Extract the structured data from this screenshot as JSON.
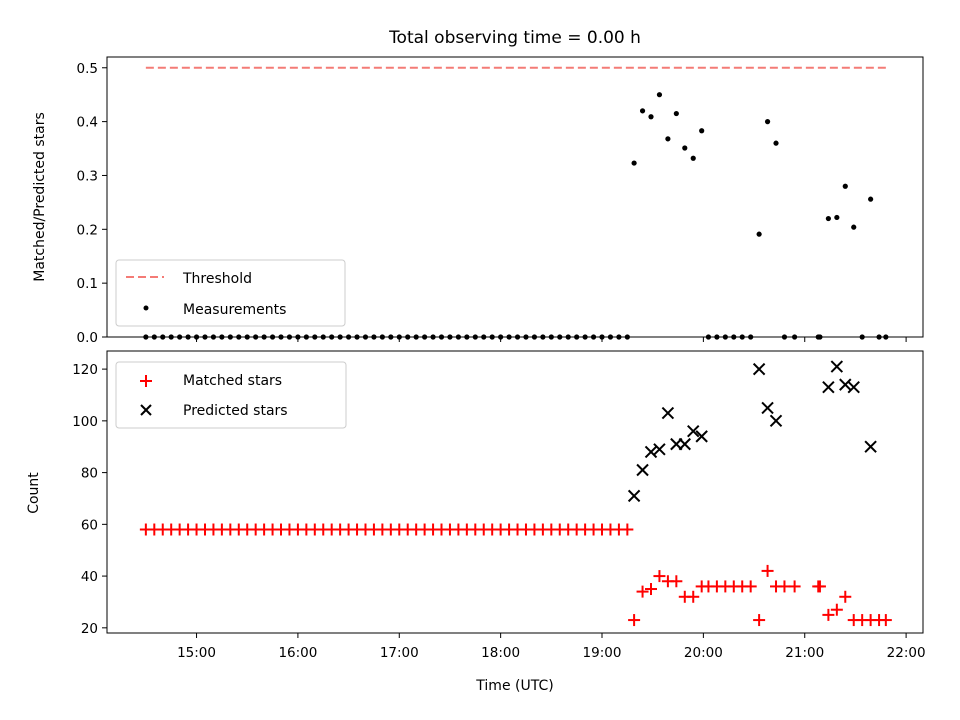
{
  "title": "Total observing time = 0.00 h",
  "chart_data": [
    {
      "type": "scatter",
      "panel": "top",
      "ylabel": "Matched/Predicted stars",
      "ylim": [
        0,
        0.52
      ],
      "yticks": [
        "0.0",
        "0.1",
        "0.2",
        "0.3",
        "0.4",
        "0.5"
      ],
      "threshold": {
        "name": "Threshold",
        "value": 0.5,
        "x_start": "14:30",
        "x_end": "21:48",
        "color": "#f47b76"
      },
      "series": [
        {
          "name": "Measurements",
          "color": "#000000",
          "points": [
            [
              "14:30",
              0
            ],
            [
              "14:35",
              0
            ],
            [
              "14:40",
              0
            ],
            [
              "14:45",
              0
            ],
            [
              "14:50",
              0
            ],
            [
              "14:55",
              0
            ],
            [
              "15:00",
              0
            ],
            [
              "15:05",
              0
            ],
            [
              "15:10",
              0
            ],
            [
              "15:15",
              0
            ],
            [
              "15:20",
              0
            ],
            [
              "15:25",
              0
            ],
            [
              "15:30",
              0
            ],
            [
              "15:35",
              0
            ],
            [
              "15:40",
              0
            ],
            [
              "15:45",
              0
            ],
            [
              "15:50",
              0
            ],
            [
              "15:55",
              0
            ],
            [
              "16:00",
              0
            ],
            [
              "16:05",
              0
            ],
            [
              "16:10",
              0
            ],
            [
              "16:15",
              0
            ],
            [
              "16:20",
              0
            ],
            [
              "16:25",
              0
            ],
            [
              "16:30",
              0
            ],
            [
              "16:35",
              0
            ],
            [
              "16:40",
              0
            ],
            [
              "16:45",
              0
            ],
            [
              "16:50",
              0
            ],
            [
              "16:55",
              0
            ],
            [
              "17:00",
              0
            ],
            [
              "17:05",
              0
            ],
            [
              "17:10",
              0
            ],
            [
              "17:15",
              0
            ],
            [
              "17:20",
              0
            ],
            [
              "17:25",
              0
            ],
            [
              "17:30",
              0
            ],
            [
              "17:35",
              0
            ],
            [
              "17:40",
              0
            ],
            [
              "17:45",
              0
            ],
            [
              "17:50",
              0
            ],
            [
              "17:55",
              0
            ],
            [
              "18:00",
              0
            ],
            [
              "18:05",
              0
            ],
            [
              "18:10",
              0
            ],
            [
              "18:15",
              0
            ],
            [
              "18:20",
              0
            ],
            [
              "18:25",
              0
            ],
            [
              "18:30",
              0
            ],
            [
              "18:35",
              0
            ],
            [
              "18:40",
              0
            ],
            [
              "18:45",
              0
            ],
            [
              "18:50",
              0
            ],
            [
              "18:55",
              0
            ],
            [
              "19:00",
              0
            ],
            [
              "19:05",
              0
            ],
            [
              "19:10",
              0
            ],
            [
              "19:15",
              0
            ],
            [
              "19:19",
              0.323
            ],
            [
              "19:24",
              0.42
            ],
            [
              "19:29",
              0.409
            ],
            [
              "19:34",
              0.45
            ],
            [
              "19:39",
              0.368
            ],
            [
              "19:44",
              0.415
            ],
            [
              "19:49",
              0.351
            ],
            [
              "19:54",
              0.332
            ],
            [
              "19:59",
              0.383
            ],
            [
              "20:03",
              0
            ],
            [
              "20:08",
              0
            ],
            [
              "20:13",
              0
            ],
            [
              "20:18",
              0
            ],
            [
              "20:23",
              0
            ],
            [
              "20:28",
              0
            ],
            [
              "20:33",
              0.191
            ],
            [
              "20:38",
              0.4
            ],
            [
              "20:43",
              0.36
            ],
            [
              "20:48",
              0
            ],
            [
              "20:54",
              0
            ],
            [
              "21:08",
              0
            ],
            [
              "21:09",
              0
            ],
            [
              "21:14",
              0.22
            ],
            [
              "21:19",
              0.222
            ],
            [
              "21:24",
              0.28
            ],
            [
              "21:29",
              0.204
            ],
            [
              "21:34",
              0
            ],
            [
              "21:39",
              0.256
            ],
            [
              "21:44",
              0
            ],
            [
              "21:48",
              0
            ]
          ]
        }
      ]
    },
    {
      "type": "scatter",
      "panel": "bottom",
      "xlabel": "Time (UTC)",
      "ylabel": "Count",
      "ylim": [
        18,
        127
      ],
      "yticks": [
        "20",
        "40",
        "60",
        "80",
        "100",
        "120"
      ],
      "xlim": [
        "14:07",
        "22:10"
      ],
      "xticks": [
        "15:00",
        "16:00",
        "17:00",
        "18:00",
        "19:00",
        "20:00",
        "21:00",
        "22:00"
      ],
      "series": [
        {
          "name": "Matched stars",
          "marker": "plus",
          "color": "#ff0000",
          "points": [
            [
              "14:30",
              58
            ],
            [
              "14:35",
              58
            ],
            [
              "14:40",
              58
            ],
            [
              "14:45",
              58
            ],
            [
              "14:50",
              58
            ],
            [
              "14:55",
              58
            ],
            [
              "15:00",
              58
            ],
            [
              "15:05",
              58
            ],
            [
              "15:10",
              58
            ],
            [
              "15:15",
              58
            ],
            [
              "15:20",
              58
            ],
            [
              "15:25",
              58
            ],
            [
              "15:30",
              58
            ],
            [
              "15:35",
              58
            ],
            [
              "15:40",
              58
            ],
            [
              "15:45",
              58
            ],
            [
              "15:50",
              58
            ],
            [
              "15:55",
              58
            ],
            [
              "16:00",
              58
            ],
            [
              "16:05",
              58
            ],
            [
              "16:10",
              58
            ],
            [
              "16:15",
              58
            ],
            [
              "16:20",
              58
            ],
            [
              "16:25",
              58
            ],
            [
              "16:30",
              58
            ],
            [
              "16:35",
              58
            ],
            [
              "16:40",
              58
            ],
            [
              "16:45",
              58
            ],
            [
              "16:50",
              58
            ],
            [
              "16:55",
              58
            ],
            [
              "17:00",
              58
            ],
            [
              "17:05",
              58
            ],
            [
              "17:10",
              58
            ],
            [
              "17:15",
              58
            ],
            [
              "17:20",
              58
            ],
            [
              "17:25",
              58
            ],
            [
              "17:30",
              58
            ],
            [
              "17:35",
              58
            ],
            [
              "17:40",
              58
            ],
            [
              "17:45",
              58
            ],
            [
              "17:50",
              58
            ],
            [
              "17:55",
              58
            ],
            [
              "18:00",
              58
            ],
            [
              "18:05",
              58
            ],
            [
              "18:10",
              58
            ],
            [
              "18:15",
              58
            ],
            [
              "18:20",
              58
            ],
            [
              "18:25",
              58
            ],
            [
              "18:30",
              58
            ],
            [
              "18:35",
              58
            ],
            [
              "18:40",
              58
            ],
            [
              "18:45",
              58
            ],
            [
              "18:50",
              58
            ],
            [
              "18:55",
              58
            ],
            [
              "19:00",
              58
            ],
            [
              "19:05",
              58
            ],
            [
              "19:10",
              58
            ],
            [
              "19:15",
              58
            ],
            [
              "19:19",
              23
            ],
            [
              "19:24",
              34
            ],
            [
              "19:29",
              35
            ],
            [
              "19:34",
              40
            ],
            [
              "19:39",
              38
            ],
            [
              "19:44",
              38
            ],
            [
              "19:49",
              32
            ],
            [
              "19:54",
              32
            ],
            [
              "19:59",
              36
            ],
            [
              "20:03",
              36
            ],
            [
              "20:08",
              36
            ],
            [
              "20:13",
              36
            ],
            [
              "20:18",
              36
            ],
            [
              "20:23",
              36
            ],
            [
              "20:28",
              36
            ],
            [
              "20:33",
              23
            ],
            [
              "20:38",
              42
            ],
            [
              "20:43",
              36
            ],
            [
              "20:48",
              36
            ],
            [
              "20:54",
              36
            ],
            [
              "21:08",
              36
            ],
            [
              "21:09",
              36
            ],
            [
              "21:14",
              25
            ],
            [
              "21:19",
              27
            ],
            [
              "21:24",
              32
            ],
            [
              "21:29",
              23
            ],
            [
              "21:34",
              23
            ],
            [
              "21:39",
              23
            ],
            [
              "21:44",
              23
            ],
            [
              "21:48",
              23
            ]
          ]
        },
        {
          "name": "Predicted stars",
          "marker": "x",
          "color": "#000000",
          "points": [
            [
              "19:19",
              71
            ],
            [
              "19:24",
              81
            ],
            [
              "19:29",
              88
            ],
            [
              "19:34",
              89
            ],
            [
              "19:39",
              103
            ],
            [
              "19:44",
              91
            ],
            [
              "19:49",
              91
            ],
            [
              "19:54",
              96
            ],
            [
              "19:59",
              94
            ],
            [
              "20:33",
              120
            ],
            [
              "20:38",
              105
            ],
            [
              "20:43",
              100
            ],
            [
              "21:14",
              113
            ],
            [
              "21:19",
              121
            ],
            [
              "21:24",
              114
            ],
            [
              "21:29",
              113
            ],
            [
              "21:39",
              90
            ]
          ]
        }
      ]
    }
  ]
}
